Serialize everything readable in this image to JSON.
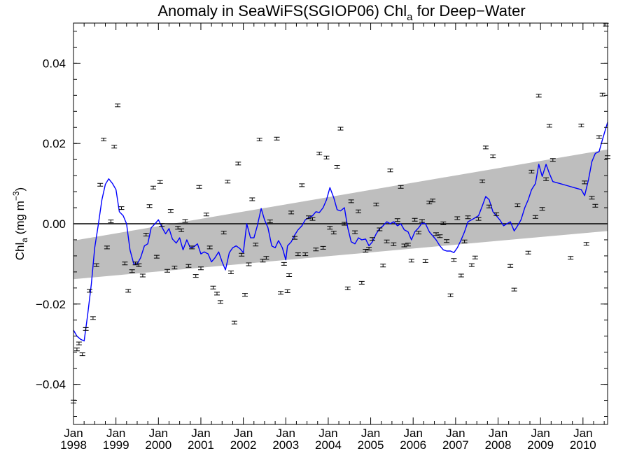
{
  "chart_data": {
    "type": "line",
    "title": {
      "pre": "Anomaly in SeaWiFS(SGIOP06) Chl",
      "sub": "a",
      "post": " for Deep−Water"
    },
    "ylabel": {
      "pre": "Chl",
      "sub": "a",
      "mid": " (mg m",
      "sup": "−3",
      "post": ")"
    },
    "xlim": [
      1998.0,
      2010.58
    ],
    "ylim": [
      -0.05,
      0.05
    ],
    "grid": false,
    "yticks": [
      {
        "v": -0.04,
        "label": "−0.04"
      },
      {
        "v": -0.02,
        "label": "−0.02"
      },
      {
        "v": 0.0,
        "label": "0.00"
      },
      {
        "v": 0.02,
        "label": "0.02"
      },
      {
        "v": 0.04,
        "label": "0.04"
      }
    ],
    "xticks": [
      {
        "v": 1998,
        "month": "Jan",
        "year": "1998"
      },
      {
        "v": 1999,
        "month": "Jan",
        "year": "1999"
      },
      {
        "v": 2000,
        "month": "Jan",
        "year": "2000"
      },
      {
        "v": 2001,
        "month": "Jan",
        "year": "2001"
      },
      {
        "v": 2002,
        "month": "Jan",
        "year": "2002"
      },
      {
        "v": 2003,
        "month": "Jan",
        "year": "2003"
      },
      {
        "v": 2004,
        "month": "Jan",
        "year": "2004"
      },
      {
        "v": 2005,
        "month": "Jan",
        "year": "2005"
      },
      {
        "v": 2006,
        "month": "Jan",
        "year": "2006"
      },
      {
        "v": 2007,
        "month": "Jan",
        "year": "2007"
      },
      {
        "v": 2008,
        "month": "Jan",
        "year": "2008"
      },
      {
        "v": 2009,
        "month": "Jan",
        "year": "2009"
      },
      {
        "v": 2010,
        "month": "Jan",
        "year": "2010"
      }
    ],
    "trend_band": {
      "x": [
        1998.0,
        2010.58
      ],
      "upper": [
        -0.0042,
        0.0185
      ],
      "lower": [
        -0.0138,
        -0.0018
      ]
    },
    "zero_line": 0.0,
    "points": [
      [
        1998.0,
        -0.0443
      ],
      [
        1998.08,
        -0.0313
      ],
      [
        1998.13,
        -0.0298
      ],
      [
        1998.21,
        -0.0325
      ],
      [
        1998.29,
        -0.0262
      ],
      [
        1998.38,
        -0.0167
      ],
      [
        1998.46,
        -0.0235
      ],
      [
        1998.54,
        -0.0103
      ],
      [
        1998.63,
        0.0097
      ],
      [
        1998.71,
        0.021
      ],
      [
        1998.79,
        -0.0059
      ],
      [
        1998.88,
        0.0006
      ],
      [
        1998.96,
        0.0192
      ],
      [
        1999.04,
        0.0295
      ],
      [
        1999.13,
        0.0039
      ],
      [
        1999.21,
        -0.0099
      ],
      [
        1999.29,
        -0.0167
      ],
      [
        1999.38,
        -0.0118
      ],
      [
        1999.46,
        -0.0099
      ],
      [
        1999.54,
        -0.0103
      ],
      [
        1999.63,
        -0.0129
      ],
      [
        1999.71,
        -0.0027
      ],
      [
        1999.79,
        0.0044
      ],
      [
        1999.88,
        0.009
      ],
      [
        1999.96,
        -0.0082
      ],
      [
        2000.04,
        0.0104
      ],
      [
        2000.08,
        -0.0003
      ],
      [
        2000.21,
        -0.0117
      ],
      [
        2000.29,
        0.0032
      ],
      [
        2000.38,
        -0.0109
      ],
      [
        2000.46,
        -0.001
      ],
      [
        2000.54,
        -0.0016
      ],
      [
        2000.63,
        0.0007
      ],
      [
        2000.71,
        -0.0105
      ],
      [
        2000.79,
        -0.0059
      ],
      [
        2000.88,
        -0.013
      ],
      [
        2000.96,
        0.0092
      ],
      [
        2001.0,
        -0.0111
      ],
      [
        2001.13,
        0.0023
      ],
      [
        2001.21,
        -0.0059
      ],
      [
        2001.29,
        -0.0159
      ],
      [
        2001.38,
        -0.0174
      ],
      [
        2001.46,
        -0.0195
      ],
      [
        2001.54,
        -0.0022
      ],
      [
        2001.63,
        0.0105
      ],
      [
        2001.71,
        -0.0121
      ],
      [
        2001.79,
        -0.0246
      ],
      [
        2001.88,
        0.015
      ],
      [
        2001.96,
        -0.0077
      ],
      [
        2002.04,
        -0.0177
      ],
      [
        2002.13,
        -0.0101
      ],
      [
        2002.21,
        0.0061
      ],
      [
        2002.29,
        -0.0052
      ],
      [
        2002.38,
        0.021
      ],
      [
        2002.46,
        -0.0092
      ],
      [
        2002.54,
        -0.0085
      ],
      [
        2002.63,
        0.0006
      ],
      [
        2002.79,
        0.0212
      ],
      [
        2002.88,
        -0.0172
      ],
      [
        2002.96,
        -0.01
      ],
      [
        2003.04,
        -0.0168
      ],
      [
        2003.08,
        -0.0128
      ],
      [
        2003.13,
        0.0028
      ],
      [
        2003.21,
        -0.0035
      ],
      [
        2003.29,
        -0.0076
      ],
      [
        2003.38,
        0.0096
      ],
      [
        2003.46,
        -0.0076
      ],
      [
        2003.54,
        0.0016
      ],
      [
        2003.63,
        0.0012
      ],
      [
        2003.71,
        -0.0064
      ],
      [
        2003.79,
        0.0175
      ],
      [
        2003.88,
        -0.006
      ],
      [
        2003.96,
        0.0165
      ],
      [
        2004.04,
        -0.001
      ],
      [
        2004.13,
        -0.0022
      ],
      [
        2004.21,
        0.0142
      ],
      [
        2004.29,
        0.0237
      ],
      [
        2004.38,
        0.0
      ],
      [
        2004.46,
        -0.0161
      ],
      [
        2004.54,
        0.0056
      ],
      [
        2004.63,
        -0.0021
      ],
      [
        2004.71,
        0.0031
      ],
      [
        2004.79,
        -0.0147
      ],
      [
        2004.88,
        -0.0067
      ],
      [
        2004.96,
        -0.0062
      ],
      [
        2005.04,
        -0.0038
      ],
      [
        2005.13,
        0.0048
      ],
      [
        2005.21,
        -0.0014
      ],
      [
        2005.29,
        -0.0104
      ],
      [
        2005.38,
        -0.0044
      ],
      [
        2005.46,
        0.0133
      ],
      [
        2005.54,
        -0.0051
      ],
      [
        2005.63,
        0.0009
      ],
      [
        2005.71,
        0.0092
      ],
      [
        2005.79,
        -0.0054
      ],
      [
        2005.88,
        -0.0052
      ],
      [
        2005.96,
        -0.0092
      ],
      [
        2006.04,
        0.001
      ],
      [
        2006.13,
        -0.0022
      ],
      [
        2006.21,
        0.0007
      ],
      [
        2006.29,
        -0.0093
      ],
      [
        2006.38,
        0.0053
      ],
      [
        2006.46,
        0.0058
      ],
      [
        2006.54,
        -0.0026
      ],
      [
        2006.63,
        -0.0031
      ],
      [
        2006.71,
        0.0001
      ],
      [
        2006.79,
        -0.0043
      ],
      [
        2006.88,
        -0.0178
      ],
      [
        2006.96,
        -0.009
      ],
      [
        2007.04,
        0.0014
      ],
      [
        2007.13,
        -0.0129
      ],
      [
        2007.21,
        -0.0044
      ],
      [
        2007.29,
        0.0016
      ],
      [
        2007.38,
        -0.0103
      ],
      [
        2007.46,
        -0.0084
      ],
      [
        2007.54,
        0.0012
      ],
      [
        2007.63,
        0.0106
      ],
      [
        2007.71,
        0.019
      ],
      [
        2007.79,
        0.0043
      ],
      [
        2007.88,
        0.0168
      ],
      [
        2007.96,
        0.0024
      ],
      [
        2008.29,
        -0.0105
      ],
      [
        2008.38,
        -0.0164
      ],
      [
        2008.46,
        0.0046
      ],
      [
        2008.71,
        -0.0072
      ],
      [
        2008.79,
        0.013
      ],
      [
        2008.88,
        0.0017
      ],
      [
        2008.96,
        0.0319
      ],
      [
        2009.04,
        0.0037
      ],
      [
        2009.13,
        0.0111
      ],
      [
        2009.21,
        0.0244
      ],
      [
        2009.29,
        0.0159
      ],
      [
        2009.71,
        -0.0085
      ],
      [
        2009.96,
        0.0245
      ],
      [
        2010.04,
        0.0103
      ],
      [
        2010.08,
        -0.005
      ],
      [
        2010.21,
        0.0065
      ],
      [
        2010.29,
        0.0045
      ],
      [
        2010.38,
        0.0216
      ],
      [
        2010.46,
        0.0322
      ],
      [
        2010.54,
        0.0496
      ],
      [
        2010.58,
        0.0166
      ]
    ],
    "smooth_line": [
      [
        1998.0,
        -0.0265
      ],
      [
        1998.08,
        -0.028
      ],
      [
        1998.17,
        -0.0288
      ],
      [
        1998.25,
        -0.0292
      ],
      [
        1998.33,
        -0.023
      ],
      [
        1998.42,
        -0.015
      ],
      [
        1998.5,
        -0.006
      ],
      [
        1998.58,
        -0.0005
      ],
      [
        1998.67,
        0.006
      ],
      [
        1998.75,
        0.0098
      ],
      [
        1998.83,
        0.0112
      ],
      [
        1998.92,
        0.01
      ],
      [
        1999.0,
        0.0085
      ],
      [
        1999.08,
        0.003
      ],
      [
        1999.17,
        0.002
      ],
      [
        1999.25,
        0.0
      ],
      [
        1999.33,
        -0.0065
      ],
      [
        1999.42,
        -0.01
      ],
      [
        1999.5,
        -0.01
      ],
      [
        1999.58,
        -0.0085
      ],
      [
        1999.67,
        -0.0055
      ],
      [
        1999.75,
        -0.005
      ],
      [
        1999.83,
        -0.001
      ],
      [
        1999.92,
        0.0
      ],
      [
        2000.0,
        0.001
      ],
      [
        2000.08,
        -0.0008
      ],
      [
        2000.17,
        -0.0025
      ],
      [
        2000.25,
        -0.0012
      ],
      [
        2000.33,
        -0.0038
      ],
      [
        2000.42,
        -0.0048
      ],
      [
        2000.5,
        -0.0035
      ],
      [
        2000.58,
        -0.0065
      ],
      [
        2000.67,
        -0.004
      ],
      [
        2000.75,
        -0.006
      ],
      [
        2000.83,
        -0.0058
      ],
      [
        2000.92,
        -0.005
      ],
      [
        2001.0,
        -0.0075
      ],
      [
        2001.08,
        -0.007
      ],
      [
        2001.17,
        -0.0075
      ],
      [
        2001.25,
        -0.0095
      ],
      [
        2001.33,
        -0.0085
      ],
      [
        2001.42,
        -0.007
      ],
      [
        2001.5,
        -0.0095
      ],
      [
        2001.58,
        -0.0115
      ],
      [
        2001.67,
        -0.0072
      ],
      [
        2001.75,
        -0.006
      ],
      [
        2001.83,
        -0.0055
      ],
      [
        2001.92,
        -0.0062
      ],
      [
        2002.0,
        -0.0072
      ],
      [
        2002.08,
        0.0
      ],
      [
        2002.17,
        -0.0035
      ],
      [
        2002.25,
        -0.0035
      ],
      [
        2002.33,
        -0.0005
      ],
      [
        2002.42,
        0.0038
      ],
      [
        2002.5,
        0.001
      ],
      [
        2002.58,
        -0.001
      ],
      [
        2002.67,
        -0.0055
      ],
      [
        2002.75,
        -0.006
      ],
      [
        2002.83,
        -0.0042
      ],
      [
        2002.92,
        -0.006
      ],
      [
        2003.0,
        -0.009
      ],
      [
        2003.04,
        -0.0055
      ],
      [
        2003.13,
        -0.0045
      ],
      [
        2003.21,
        -0.0028
      ],
      [
        2003.29,
        -0.0015
      ],
      [
        2003.38,
        -0.0005
      ],
      [
        2003.46,
        0.001
      ],
      [
        2003.54,
        0.0015
      ],
      [
        2003.63,
        0.002
      ],
      [
        2003.71,
        0.003
      ],
      [
        2003.79,
        0.0028
      ],
      [
        2003.88,
        0.004
      ],
      [
        2003.96,
        0.006
      ],
      [
        2004.04,
        0.009
      ],
      [
        2004.13,
        0.0065
      ],
      [
        2004.21,
        0.0035
      ],
      [
        2004.29,
        0.0032
      ],
      [
        2004.38,
        0.004
      ],
      [
        2004.46,
        -0.001
      ],
      [
        2004.54,
        -0.0045
      ],
      [
        2004.63,
        -0.005
      ],
      [
        2004.71,
        -0.0035
      ],
      [
        2004.79,
        -0.004
      ],
      [
        2004.88,
        -0.0038
      ],
      [
        2004.96,
        -0.0055
      ],
      [
        2005.04,
        -0.0045
      ],
      [
        2005.13,
        -0.0025
      ],
      [
        2005.21,
        -0.0012
      ],
      [
        2005.29,
        -0.0005
      ],
      [
        2005.38,
        0.0005
      ],
      [
        2005.46,
        0.0
      ],
      [
        2005.54,
        0.0005
      ],
      [
        2005.63,
        -0.0005
      ],
      [
        2005.71,
        0.0
      ],
      [
        2005.79,
        -0.0015
      ],
      [
        2005.88,
        -0.002
      ],
      [
        2005.96,
        -0.004
      ],
      [
        2006.04,
        -0.002
      ],
      [
        2006.13,
        -0.001
      ],
      [
        2006.21,
        0.0002
      ],
      [
        2006.29,
        0.0
      ],
      [
        2006.38,
        -0.002
      ],
      [
        2006.46,
        -0.003
      ],
      [
        2006.54,
        -0.004
      ],
      [
        2006.63,
        -0.0055
      ],
      [
        2006.71,
        -0.0065
      ],
      [
        2006.79,
        -0.0068
      ],
      [
        2006.88,
        -0.0068
      ],
      [
        2006.96,
        -0.0072
      ],
      [
        2007.04,
        -0.006
      ],
      [
        2007.13,
        -0.004
      ],
      [
        2007.21,
        -0.002
      ],
      [
        2007.29,
        0.0005
      ],
      [
        2007.38,
        0.001
      ],
      [
        2007.46,
        0.0015
      ],
      [
        2007.54,
        0.002
      ],
      [
        2007.63,
        0.0045
      ],
      [
        2007.71,
        0.0068
      ],
      [
        2007.79,
        0.006
      ],
      [
        2007.88,
        0.003
      ],
      [
        2007.96,
        0.002
      ],
      [
        2008.04,
        0.001
      ],
      [
        2008.13,
        -0.0005
      ],
      [
        2008.21,
        0.0
      ],
      [
        2008.29,
        0.0005
      ],
      [
        2008.38,
        -0.0018
      ],
      [
        2008.46,
        -0.0005
      ],
      [
        2008.54,
        0.001
      ],
      [
        2008.63,
        0.004
      ],
      [
        2008.71,
        0.006
      ],
      [
        2008.79,
        0.0085
      ],
      [
        2008.88,
        0.01
      ],
      [
        2008.96,
        0.0148
      ],
      [
        2009.04,
        0.0118
      ],
      [
        2009.13,
        0.0148
      ],
      [
        2009.21,
        0.0125
      ],
      [
        2009.29,
        0.0105
      ],
      [
        2009.46,
        0.01
      ],
      [
        2009.63,
        0.0095
      ],
      [
        2009.79,
        0.009
      ],
      [
        2009.96,
        0.0085
      ],
      [
        2010.04,
        0.007
      ],
      [
        2010.13,
        0.011
      ],
      [
        2010.21,
        0.0155
      ],
      [
        2010.29,
        0.0175
      ],
      [
        2010.38,
        0.018
      ],
      [
        2010.46,
        0.021
      ],
      [
        2010.58,
        0.0253
      ]
    ]
  }
}
